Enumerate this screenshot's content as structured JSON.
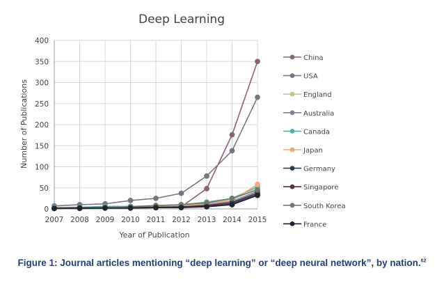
{
  "chart_data": {
    "type": "line",
    "title": "Deep Learning",
    "xlabel": "Year of Publication",
    "ylabel": "Number of Publications",
    "ylim": [
      0,
      400
    ],
    "yticks": [
      0,
      50,
      100,
      150,
      200,
      250,
      300,
      350,
      400
    ],
    "x": [
      "2007",
      "2008",
      "2009",
      "2010",
      "2011",
      "2012",
      "2013",
      "2014",
      "2015"
    ],
    "grid": true,
    "legend_position": "right",
    "series": [
      {
        "name": "China",
        "color": "#8a6278",
        "values": [
          2,
          3,
          3,
          4,
          5,
          5,
          48,
          176,
          350
        ]
      },
      {
        "name": "USA",
        "color": "#7a7482",
        "values": [
          7,
          10,
          12,
          20,
          25,
          37,
          78,
          138,
          265
        ]
      },
      {
        "name": "England",
        "color": "#c4c48c",
        "values": [
          3,
          4,
          5,
          6,
          7,
          8,
          14,
          22,
          48
        ]
      },
      {
        "name": "Australia",
        "color": "#8c7aa0",
        "values": [
          2,
          3,
          3,
          4,
          5,
          6,
          10,
          18,
          42
        ]
      },
      {
        "name": "Canada",
        "color": "#4fb0a8",
        "values": [
          3,
          4,
          6,
          6,
          8,
          10,
          16,
          25,
          52
        ]
      },
      {
        "name": "Japan",
        "color": "#f0a878",
        "values": [
          2,
          3,
          3,
          4,
          5,
          6,
          12,
          20,
          58
        ]
      },
      {
        "name": "Germany",
        "color": "#2e3a50",
        "values": [
          1,
          2,
          2,
          3,
          4,
          5,
          8,
          15,
          38
        ]
      },
      {
        "name": "Singapore",
        "color": "#5a2e48",
        "values": [
          1,
          1,
          2,
          2,
          3,
          4,
          6,
          12,
          35
        ]
      },
      {
        "name": "South Korea",
        "color": "#6f7a6a",
        "values": [
          2,
          3,
          4,
          5,
          8,
          10,
          14,
          25,
          45
        ]
      },
      {
        "name": "France",
        "color": "#1e2430",
        "values": [
          1,
          2,
          2,
          2,
          3,
          3,
          5,
          10,
          32
        ]
      }
    ]
  },
  "caption": {
    "text": "Figure 1: Journal articles mentioning “deep learning” or “deep neural network”, by nation.",
    "note": "62"
  }
}
